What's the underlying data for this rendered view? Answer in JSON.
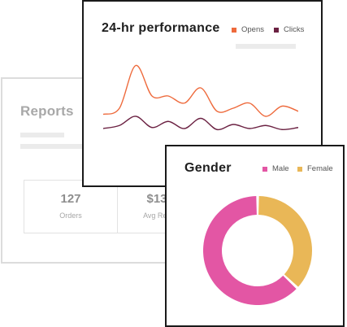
{
  "reports_card": {
    "title": "Reports",
    "stats": [
      {
        "value": "127",
        "label": "Orders"
      },
      {
        "value": "$13",
        "label": "Avg Rev"
      }
    ]
  },
  "performance_card": {
    "title": "24-hr performance",
    "legend": [
      {
        "label": "Opens",
        "color": "#ee6a3c"
      },
      {
        "label": "Clicks",
        "color": "#6b2142"
      }
    ],
    "chart_data": {
      "type": "line",
      "title": "24-hr performance",
      "xlabel": "",
      "ylabel": "",
      "grid": false,
      "legend_position": "top-right",
      "x": [
        0,
        1,
        2,
        3,
        4,
        5,
        6,
        7,
        8,
        9,
        10,
        11,
        12
      ],
      "series": [
        {
          "name": "Opens",
          "color": "#ee6a3c",
          "values": [
            22,
            28,
            70,
            40,
            40,
            33,
            48,
            25,
            28,
            33,
            20,
            30,
            25
          ]
        },
        {
          "name": "Clicks",
          "color": "#6b2142",
          "values": [
            8,
            11,
            20,
            9,
            15,
            8,
            18,
            7,
            12,
            8,
            11,
            7,
            9
          ]
        }
      ],
      "ylim": [
        0,
        80
      ]
    }
  },
  "gender_card": {
    "title": "Gender",
    "legend": [
      {
        "label": "Male",
        "color": "#e356a4"
      },
      {
        "label": "Female",
        "color": "#e9b757"
      }
    ],
    "chart_data": {
      "type": "pie",
      "categories": [
        "Male",
        "Female"
      ],
      "values": [
        63,
        37
      ],
      "colors": [
        "#e356a4",
        "#e9b757"
      ],
      "legend_position": "top-right",
      "donut": true
    }
  }
}
